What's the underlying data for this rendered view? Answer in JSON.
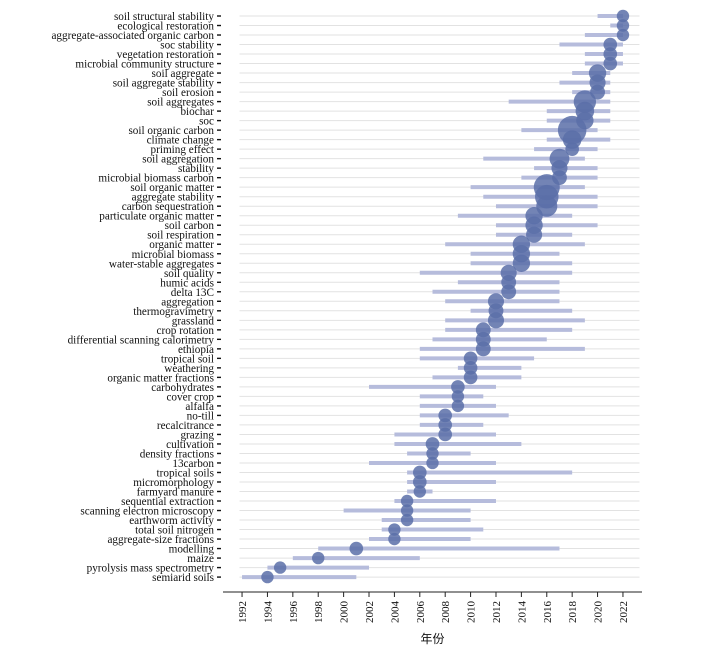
{
  "chart_data": {
    "type": "scatter",
    "subtype": "timeline-bubble",
    "xlabel": "年份",
    "ylabel": "",
    "title": "",
    "xlim": [
      1990.5,
      2023.5
    ],
    "x_ticks": [
      1992,
      1994,
      1996,
      1998,
      2000,
      2002,
      2004,
      2006,
      2008,
      2010,
      2012,
      2014,
      2016,
      2018,
      2020,
      2022
    ],
    "grid": "horizontal",
    "colors": {
      "point": "#5a6fa8",
      "bar": "#b6bcdc",
      "grid": "#e2e2e2"
    },
    "keywords": [
      {
        "label": "soil structural stability",
        "peak": 2022,
        "start": 2020,
        "end": 2022,
        "size": 1.0
      },
      {
        "label": "ecological restoration",
        "peak": 2022,
        "start": 2021,
        "end": 2022,
        "size": 1.0
      },
      {
        "label": "aggregate-associated organic carbon",
        "peak": 2022,
        "start": 2019,
        "end": 2022,
        "size": 1.0
      },
      {
        "label": "soc stability",
        "peak": 2021,
        "start": 2017,
        "end": 2022,
        "size": 1.1
      },
      {
        "label": "vegetation restoration",
        "peak": 2021,
        "start": 2019,
        "end": 2022,
        "size": 1.1
      },
      {
        "label": "microbial community structure",
        "peak": 2021,
        "start": 2019,
        "end": 2022,
        "size": 1.1
      },
      {
        "label": "soil aggregate",
        "peak": 2020,
        "start": 2018,
        "end": 2021,
        "size": 1.4
      },
      {
        "label": "soil aggregate stability",
        "peak": 2020,
        "start": 2017,
        "end": 2021,
        "size": 1.3
      },
      {
        "label": "soil erosion",
        "peak": 2020,
        "start": 2018,
        "end": 2021,
        "size": 1.2
      },
      {
        "label": "soil aggregates",
        "peak": 2019,
        "start": 2013,
        "end": 2021,
        "size": 1.8
      },
      {
        "label": "biochar",
        "peak": 2019,
        "start": 2016,
        "end": 2021,
        "size": 1.5
      },
      {
        "label": "soc",
        "peak": 2019,
        "start": 2016,
        "end": 2021,
        "size": 1.4
      },
      {
        "label": "soil organic carbon",
        "peak": 2018,
        "start": 2014,
        "end": 2020,
        "size": 2.3
      },
      {
        "label": "climate change",
        "peak": 2018,
        "start": 2016,
        "end": 2021,
        "size": 1.5
      },
      {
        "label": "priming effect",
        "peak": 2018,
        "start": 2015,
        "end": 2020,
        "size": 1.1
      },
      {
        "label": "soil aggregation",
        "peak": 2017,
        "start": 2011,
        "end": 2019,
        "size": 1.6
      },
      {
        "label": "stability",
        "peak": 2017,
        "start": 2015,
        "end": 2020,
        "size": 1.3
      },
      {
        "label": "microbial biomass carbon",
        "peak": 2017,
        "start": 2014,
        "end": 2020,
        "size": 1.2
      },
      {
        "label": "soil organic matter",
        "peak": 2016,
        "start": 2010,
        "end": 2019,
        "size": 2.1
      },
      {
        "label": "aggregate stability",
        "peak": 2016,
        "start": 2011,
        "end": 2020,
        "size": 1.9
      },
      {
        "label": "carbon sequestration",
        "peak": 2016,
        "start": 2012,
        "end": 2020,
        "size": 1.7
      },
      {
        "label": "particulate organic matter",
        "peak": 2015,
        "start": 2009,
        "end": 2018,
        "size": 1.4
      },
      {
        "label": "soil carbon",
        "peak": 2015,
        "start": 2012,
        "end": 2020,
        "size": 1.4
      },
      {
        "label": "soil respiration",
        "peak": 2015,
        "start": 2012,
        "end": 2018,
        "size": 1.3
      },
      {
        "label": "organic matter",
        "peak": 2014,
        "start": 2008,
        "end": 2019,
        "size": 1.4
      },
      {
        "label": "microbial biomass",
        "peak": 2014,
        "start": 2010,
        "end": 2017,
        "size": 1.4
      },
      {
        "label": "water-stable aggregates",
        "peak": 2014,
        "start": 2010,
        "end": 2018,
        "size": 1.4
      },
      {
        "label": "soil quality",
        "peak": 2013,
        "start": 2006,
        "end": 2018,
        "size": 1.3
      },
      {
        "label": "humic acids",
        "peak": 2013,
        "start": 2009,
        "end": 2017,
        "size": 1.2
      },
      {
        "label": "delta 13C",
        "peak": 2013,
        "start": 2007,
        "end": 2017,
        "size": 1.2
      },
      {
        "label": "aggregation",
        "peak": 2012,
        "start": 2008,
        "end": 2017,
        "size": 1.3
      },
      {
        "label": "thermogravimetry",
        "peak": 2012,
        "start": 2010,
        "end": 2018,
        "size": 1.2
      },
      {
        "label": "grassland",
        "peak": 2012,
        "start": 2008,
        "end": 2019,
        "size": 1.3
      },
      {
        "label": "crop rotation",
        "peak": 2011,
        "start": 2008,
        "end": 2018,
        "size": 1.2
      },
      {
        "label": "differential scanning calorimetry",
        "peak": 2011,
        "start": 2007,
        "end": 2016,
        "size": 1.2
      },
      {
        "label": "ethiopia",
        "peak": 2011,
        "start": 2006,
        "end": 2019,
        "size": 1.2
      },
      {
        "label": "tropical soil",
        "peak": 2010,
        "start": 2006,
        "end": 2015,
        "size": 1.1
      },
      {
        "label": "weathering",
        "peak": 2010,
        "start": 2009,
        "end": 2014,
        "size": 1.1
      },
      {
        "label": "organic matter fractions",
        "peak": 2010,
        "start": 2007,
        "end": 2014,
        "size": 1.1
      },
      {
        "label": "carbohydrates",
        "peak": 2009,
        "start": 2002,
        "end": 2012,
        "size": 1.1
      },
      {
        "label": "cover crop",
        "peak": 2009,
        "start": 2006,
        "end": 2011,
        "size": 1.0
      },
      {
        "label": "alfalfa",
        "peak": 2009,
        "start": 2006,
        "end": 2012,
        "size": 1.0
      },
      {
        "label": "no-till",
        "peak": 2008,
        "start": 2006,
        "end": 2013,
        "size": 1.1
      },
      {
        "label": "recalcitrance",
        "peak": 2008,
        "start": 2006,
        "end": 2011,
        "size": 1.1
      },
      {
        "label": "grazing",
        "peak": 2008,
        "start": 2004,
        "end": 2012,
        "size": 1.1
      },
      {
        "label": "cultivation",
        "peak": 2007,
        "start": 2004,
        "end": 2014,
        "size": 1.1
      },
      {
        "label": "density fractions",
        "peak": 2007,
        "start": 2005,
        "end": 2010,
        "size": 1.0
      },
      {
        "label": "13carbon",
        "peak": 2007,
        "start": 2002,
        "end": 2012,
        "size": 1.0
      },
      {
        "label": "tropical soils",
        "peak": 2006,
        "start": 2005,
        "end": 2018,
        "size": 1.1
      },
      {
        "label": "micromorphology",
        "peak": 2006,
        "start": 2005,
        "end": 2012,
        "size": 1.1
      },
      {
        "label": "farmyard manure",
        "peak": 2006,
        "start": 2005,
        "end": 2007,
        "size": 1.0
      },
      {
        "label": "sequential extraction",
        "peak": 2005,
        "start": 2004,
        "end": 2012,
        "size": 1.0
      },
      {
        "label": "scanning electron microscopy",
        "peak": 2005,
        "start": 2000,
        "end": 2010,
        "size": 1.0
      },
      {
        "label": "earthworm activity",
        "peak": 2005,
        "start": 2003,
        "end": 2010,
        "size": 1.0
      },
      {
        "label": "total soil nitrogen",
        "peak": 2004,
        "start": 2003,
        "end": 2011,
        "size": 1.0
      },
      {
        "label": "aggregate-size fractions",
        "peak": 2004,
        "start": 2002,
        "end": 2010,
        "size": 1.0
      },
      {
        "label": "modelling",
        "peak": 2001,
        "start": 1998,
        "end": 2017,
        "size": 1.1
      },
      {
        "label": "maize",
        "peak": 1998,
        "start": 1996,
        "end": 2006,
        "size": 1.0
      },
      {
        "label": "pyrolysis mass spectrometry",
        "peak": 1995,
        "start": 1994,
        "end": 2002,
        "size": 1.0
      },
      {
        "label": "semiarid soils",
        "peak": 1994,
        "start": 1992,
        "end": 2001,
        "size": 1.0
      }
    ]
  }
}
